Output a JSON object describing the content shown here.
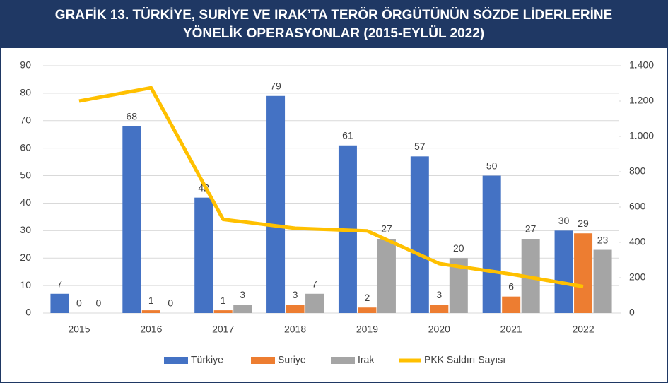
{
  "chart_data": {
    "type": "bar",
    "title": [
      "GRAFİK 13. TÜRKİYE, SURİYE VE IRAK’TA TERÖR ÖRGÜTÜNÜN SÖZDE LİDERLERİNE",
      "YÖNELİK OPERASYONLAR (2015-EYLÜL 2022)"
    ],
    "categories": [
      "2015",
      "2016",
      "2017",
      "2018",
      "2019",
      "2020",
      "2021",
      "2022"
    ],
    "series": [
      {
        "name": "Türkiye",
        "color": "#4472c4",
        "values": [
          7,
          68,
          42,
          79,
          61,
          57,
          50,
          30
        ]
      },
      {
        "name": "Suriye",
        "color": "#ed7d31",
        "values": [
          0,
          1,
          1,
          3,
          2,
          3,
          6,
          29
        ]
      },
      {
        "name": "Irak",
        "color": "#a5a5a5",
        "values": [
          0,
          0,
          3,
          7,
          27,
          20,
          27,
          23
        ]
      },
      {
        "name": "PKK Saldırı Sayısı",
        "color": "#ffc000",
        "type": "line",
        "axis": "y2",
        "values": [
          1200,
          1275,
          530,
          480,
          465,
          280,
          220,
          150
        ]
      }
    ],
    "ylim": [
      0,
      90
    ],
    "yticks": [
      0,
      10,
      20,
      30,
      40,
      50,
      60,
      70,
      80,
      90
    ],
    "y2lim": [
      0,
      1400
    ],
    "y2ticks": [
      0,
      200,
      400,
      600,
      800,
      {
        "value": 1000,
        "label": "1.000"
      },
      {
        "value": 1200,
        "label": "1.200"
      },
      {
        "value": 1400,
        "label": "1.400"
      }
    ],
    "grid": true,
    "legend": "bottom"
  }
}
